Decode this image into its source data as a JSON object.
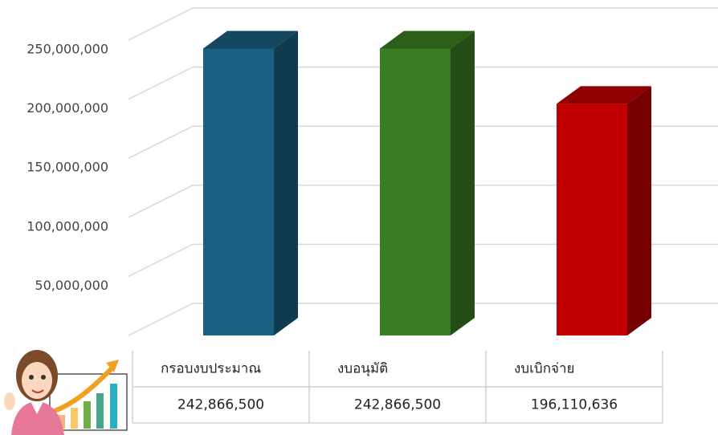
{
  "chart_data": {
    "type": "bar3d",
    "categories": [
      "กรอบงบประมาณ",
      "งบอนุมัติ",
      "งบเบิกจ่าย"
    ],
    "values": [
      242866500,
      242866500,
      196110636
    ],
    "value_labels": [
      "242,866,500",
      "242,866,500",
      "196,110,636"
    ],
    "colors": [
      "#1a5f80",
      "#3b7d23",
      "#c00000"
    ],
    "ylim": [
      0,
      250000000
    ],
    "yticks": [
      {
        "value": 50000000,
        "label": "50,000,000"
      },
      {
        "value": 100000000,
        "label": "100,000,000"
      },
      {
        "value": 150000000,
        "label": "150,000,000"
      },
      {
        "value": 200000000,
        "label": "200,000,000"
      },
      {
        "value": 250000000,
        "label": "250,000,000"
      }
    ],
    "grid": true
  }
}
